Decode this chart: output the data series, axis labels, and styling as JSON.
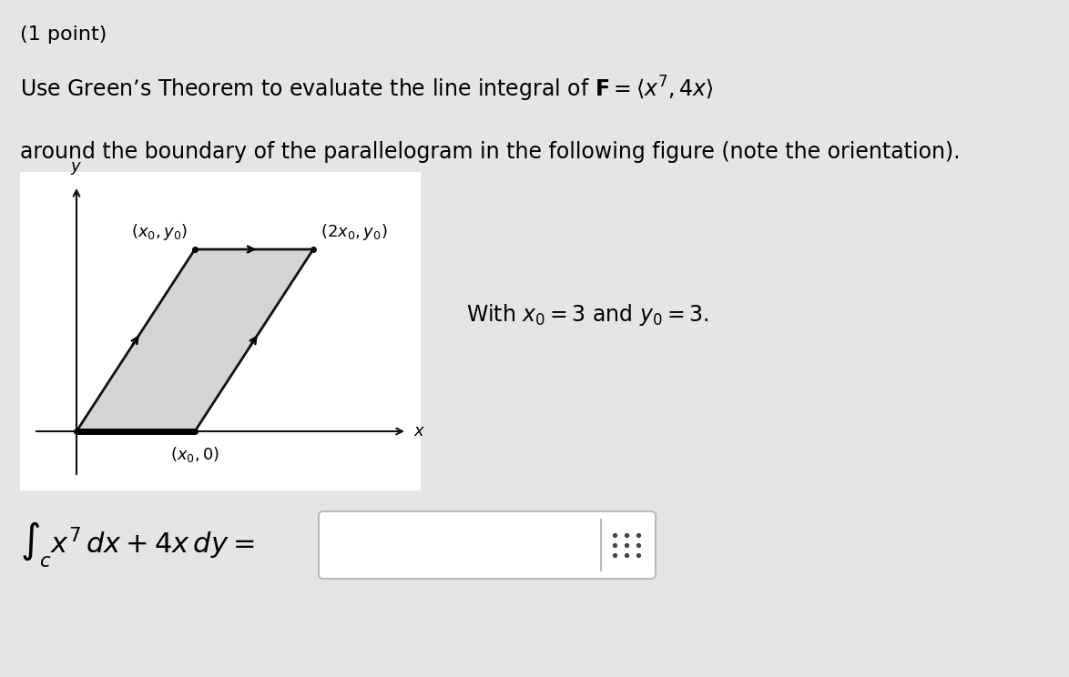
{
  "background_color": "#e5e5e5",
  "white_bg": "#ffffff",
  "title_point": "(1 point)",
  "line1_a": "Use Green’s Theorem to evaluate the line integral of ",
  "line1_math": "$\\mathbf{F} = \\langle x^7, 4x \\rangle$",
  "line2": "around the boundary of the parallelogram in the following figure (note the orientation).",
  "with_text": "With $x_0 = 3$ and $y_0 = 3$.",
  "label_bottom": "$(x_0, 0)$",
  "label_top_left": "$(x_0, y_0)$",
  "label_top_right": "$(2x_0, y_0)$",
  "y_label": "$y$",
  "x_label": "$x$",
  "parallelogram_fill": "#d4d4d4",
  "parallelogram_edge": "#111111",
  "axis_color": "#111111",
  "font_size_main": 17,
  "font_size_point": 16,
  "font_size_label": 13,
  "font_size_integral": 22,
  "fig_width": 11.74,
  "fig_height": 7.44
}
